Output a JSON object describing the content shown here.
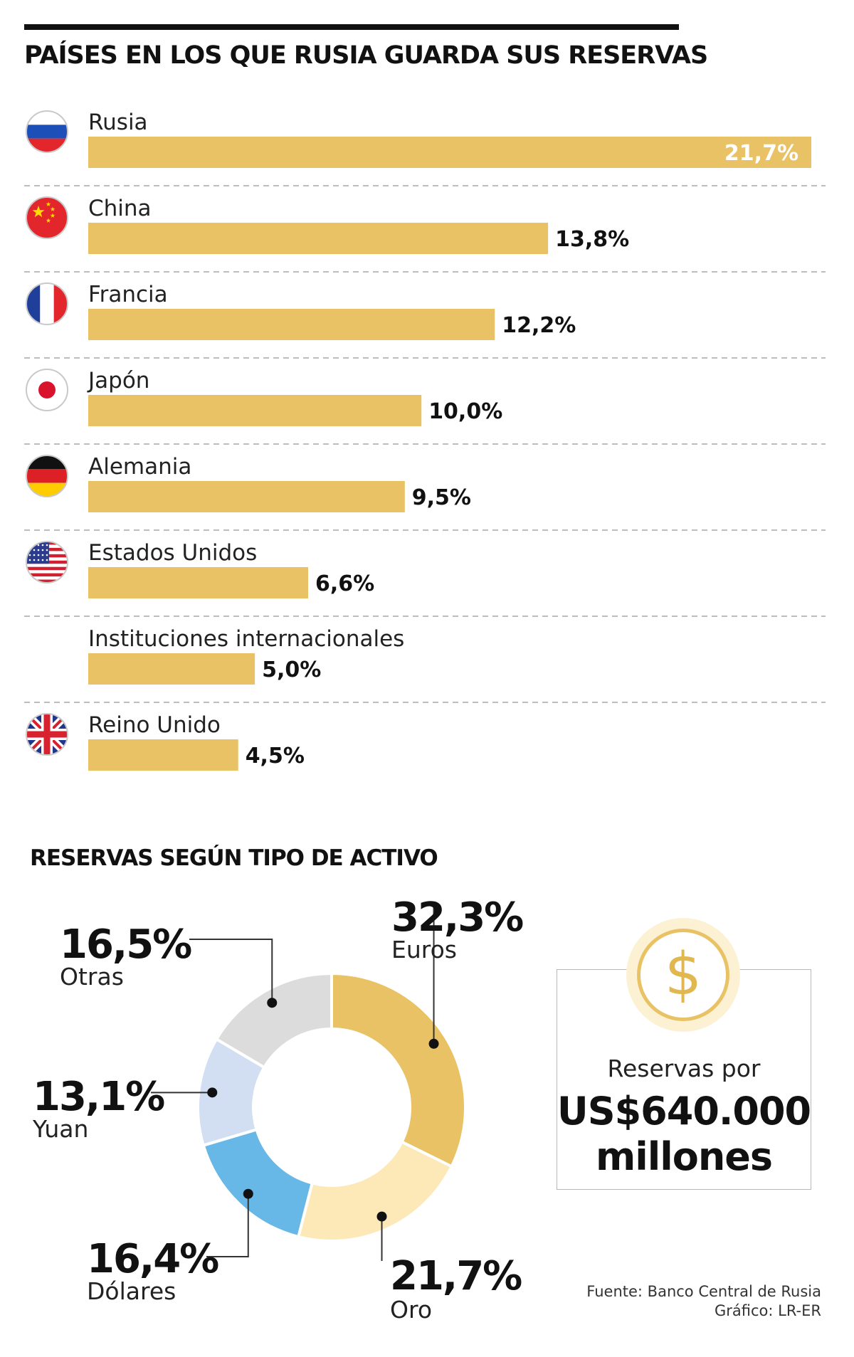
{
  "chart_data": [
    {
      "type": "bar",
      "orientation": "horizontal",
      "title": "PAÍSES EN LOS QUE RUSIA GUARDA SUS RESERVAS",
      "categories": [
        "Rusia",
        "China",
        "Francia",
        "Japón",
        "Alemania",
        "Estados Unidos",
        "Instituciones internacionales",
        "Reino Unido"
      ],
      "values": [
        21.7,
        13.8,
        12.2,
        10.0,
        9.5,
        6.6,
        5.0,
        4.5
      ],
      "value_labels": [
        "21,7%",
        "13,8%",
        "12,2%",
        "10,0%",
        "9,5%",
        "6,6%",
        "5,0%",
        "4,5%"
      ],
      "flags": [
        "russia-flag-icon",
        "china-flag-icon",
        "france-flag-icon",
        "japan-flag-icon",
        "germany-flag-icon",
        "usa-flag-icon",
        "",
        "uk-flag-icon"
      ],
      "bar_color": "#e8c264",
      "xlim": [
        0,
        21.7
      ]
    },
    {
      "type": "pie",
      "donut": true,
      "title": "RESERVAS SEGÚN TIPO DE ACTIVO",
      "slices": [
        {
          "name": "Euros",
          "value": 32.3,
          "label": "32,3%",
          "color": "#e8c264"
        },
        {
          "name": "Oro",
          "value": 21.7,
          "label": "21,7%",
          "color": "#fde8b8"
        },
        {
          "name": "Dólares",
          "value": 16.4,
          "label": "16,4%",
          "color": "#67b8e6"
        },
        {
          "name": "Yuan",
          "value": 13.1,
          "label": "13,1%",
          "color": "#d2def2"
        },
        {
          "name": "Otras",
          "value": 16.5,
          "label": "16,5%",
          "color": "#dcdcdc"
        }
      ]
    }
  ],
  "total": {
    "label": "Reservas por",
    "value_line1": "US$640.000",
    "value_line2": "millones",
    "icon": "dollar-coin-icon"
  },
  "source": {
    "line1": "Fuente: Banco Central de Rusia",
    "line2": "Gráfico: LR-ER"
  }
}
